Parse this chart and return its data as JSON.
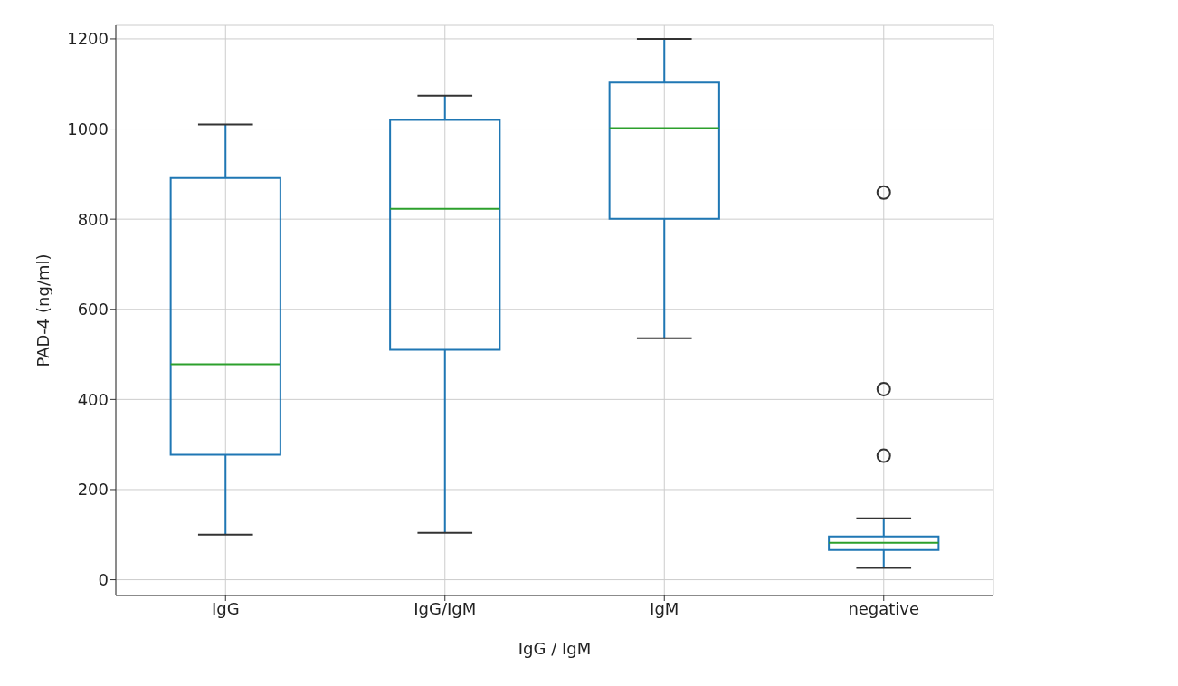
{
  "chart_data": {
    "type": "box",
    "xlabel": "IgG / IgM",
    "ylabel": "PAD-4 (ng/ml)",
    "categories": [
      "IgG",
      "IgG/IgM",
      "IgM",
      "negative"
    ],
    "color": "#1f77b4",
    "boxes": [
      {
        "low": 100,
        "q1": 277,
        "median": 478,
        "q3": 891,
        "high": 1010
      },
      {
        "low": 104,
        "q1": 510,
        "median": 823,
        "q3": 1020,
        "high": 1074
      },
      {
        "low": 536,
        "q1": 801,
        "median": 1002,
        "q3": 1103,
        "high": 1200
      },
      {
        "low": 26,
        "q1": 66,
        "median": 82,
        "q3": 96,
        "high": 136,
        "outliers": [
          859,
          423,
          275
        ]
      }
    ],
    "ylim": [
      -35,
      1230
    ],
    "yticks": [
      0,
      200,
      400,
      600,
      800,
      1000,
      1200
    ],
    "grid": true
  }
}
